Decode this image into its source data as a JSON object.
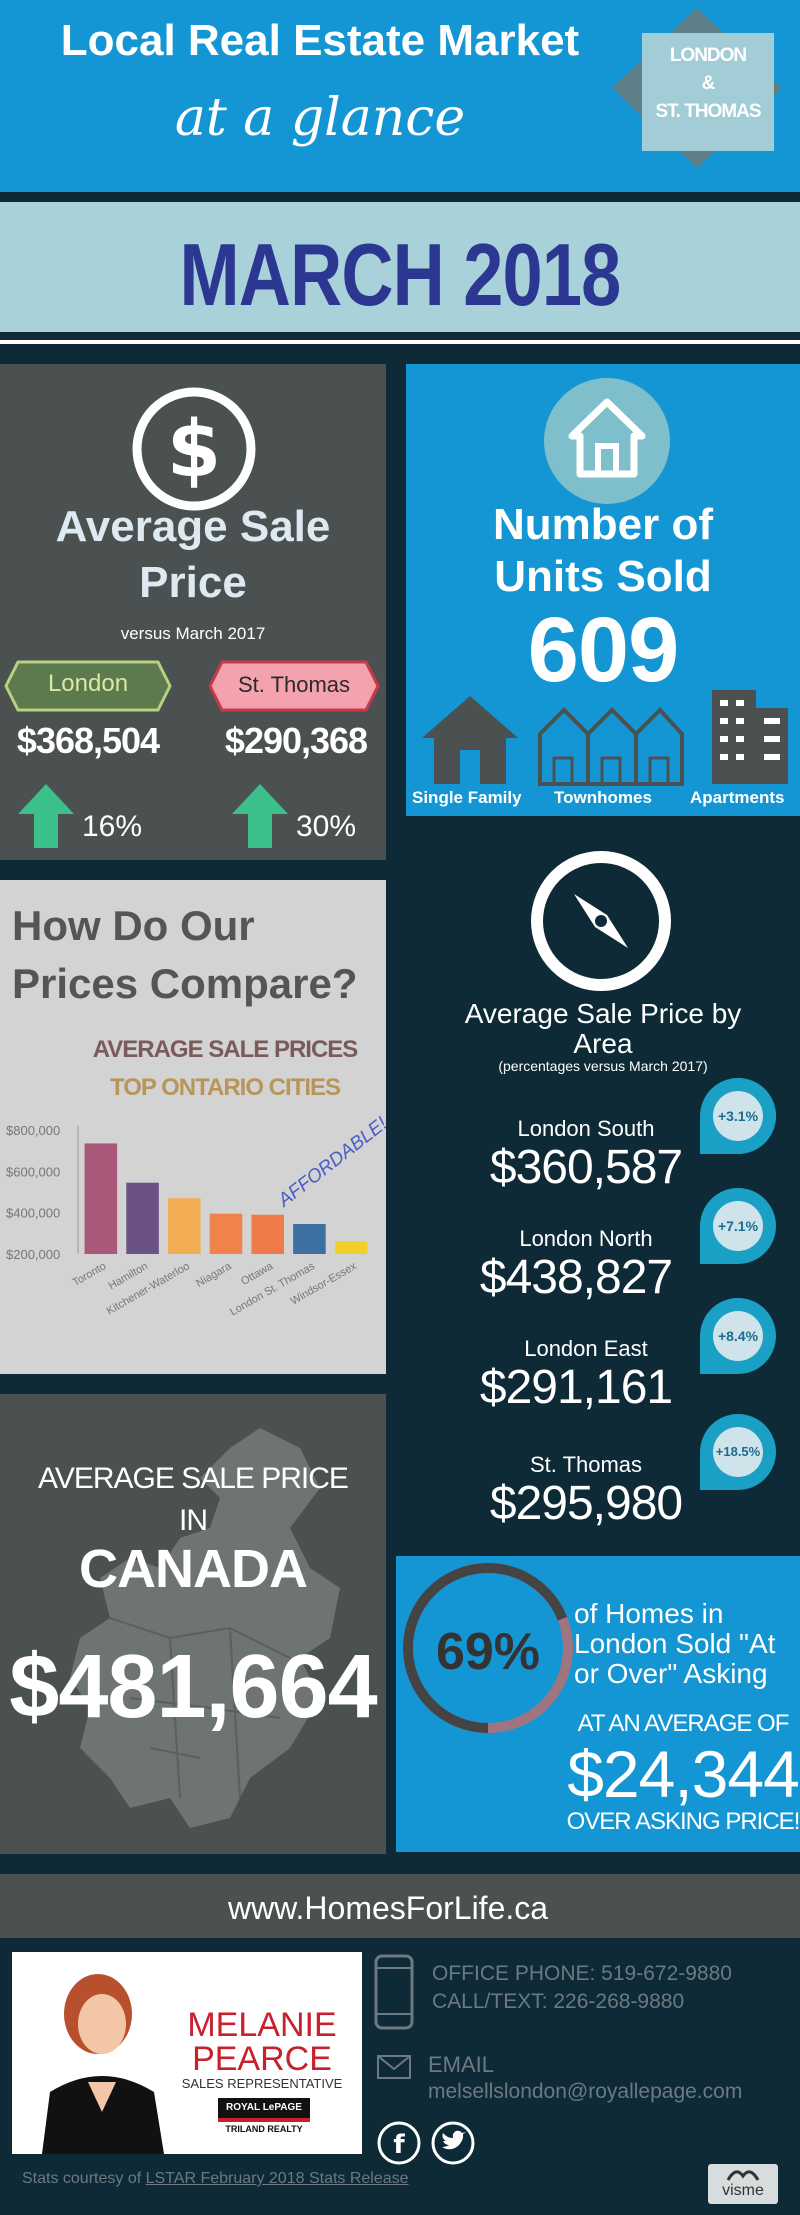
{
  "header": {
    "title": "Local Real Estate Market",
    "subtitle": "at a glance",
    "badge_line1": "LONDON",
    "badge_line2": "&",
    "badge_line3": "ST. THOMAS"
  },
  "month": "MARCH 2018",
  "avg_sale": {
    "title_line1": "Average Sale",
    "title_line2": "Price",
    "subtitle": "versus March 2017",
    "london_label": "London",
    "stthomas_label": "St. Thomas",
    "london_price": "$368,504",
    "stthomas_price": "$290,368",
    "london_change": "16%",
    "stthomas_change": "30%"
  },
  "units": {
    "title_line1": "Number of",
    "title_line2": "Units Sold",
    "count": "609",
    "single_family": "Single Family",
    "townhomes": "Townhomes",
    "apartments": "Apartments"
  },
  "compare": {
    "title_line1": "How Do Our",
    "title_line2": "Prices Compare?",
    "chart_title1": "AVERAGE SALE PRICES",
    "chart_title2": "TOP ONTARIO CITIES",
    "annotation": "AFFORDABLE!"
  },
  "chart_data": {
    "type": "bar",
    "title": "AVERAGE SALE PRICES TOP ONTARIO CITIES",
    "categories": [
      "Toronto",
      "Hamilton",
      "Kitchener-Waterloo",
      "Niagara",
      "Ottawa",
      "London St. Thomas",
      "Windsor-Essex"
    ],
    "values": [
      735000,
      545000,
      470000,
      395000,
      390000,
      345000,
      262000
    ],
    "ylim": [
      200000,
      800000
    ],
    "ytick_labels": [
      "$200,000",
      "$400,000",
      "$600,000",
      "$800,000"
    ],
    "yticks": [
      200000,
      400000,
      600000,
      800000
    ],
    "colors": [
      "#a9587a",
      "#6a5286",
      "#f2ac52",
      "#f0834a",
      "#ef7a4a",
      "#3e6fa1",
      "#f3cf2c"
    ]
  },
  "area": {
    "title_line1": "Average Sale Price by",
    "title_line2": "Area",
    "subtitle": "(percentages versus March 2017)",
    "items": [
      {
        "name": "London South",
        "price": "$360,587",
        "change": "+3.1%"
      },
      {
        "name": "London North",
        "price": "$438,827",
        "change": "+7.1%"
      },
      {
        "name": "London East",
        "price": "$291,161",
        "change": "+8.4%"
      },
      {
        "name": "St. Thomas",
        "price": "$295,980",
        "change": "+18.5%"
      }
    ]
  },
  "canada": {
    "line1": "AVERAGE SALE PRICE",
    "line2": "IN",
    "line3": "CANADA",
    "price": "$481,664"
  },
  "asking": {
    "percent": "69%",
    "percent_value": 69,
    "text_line1": "of Homes in",
    "text_line2": "London Sold \"At",
    "text_line3": "or Over\" Asking",
    "avg_label": "AT AN AVERAGE OF",
    "amount": "$24,344",
    "over_label": "OVER ASKING PRICE!"
  },
  "website": "www.HomesForLife.ca",
  "agent": {
    "first_name": "MELANIE",
    "last_name": "PEARCE",
    "role": "SALES REPRESENTATIVE",
    "brand_line1": "ROYAL LePAGE",
    "brand_line2": "TRILAND REALTY"
  },
  "contact": {
    "office_phone": "OFFICE PHONE: 519-672-9880",
    "call_text": "CALL/TEXT: 226-268-9880",
    "email_label": "EMAIL",
    "email": "melsellslondon@royallepage.com"
  },
  "footer": {
    "stats_prefix": "Stats courtesy of ",
    "stats_link": "LSTAR February 2018 Stats Release",
    "brand": "visme"
  },
  "colors": {
    "blue": "#1396d3",
    "dark_gray": "#4b5050",
    "navy": "#0d2a36",
    "light_gray": "#d3d3d3",
    "title_blue": "#2b3791"
  }
}
